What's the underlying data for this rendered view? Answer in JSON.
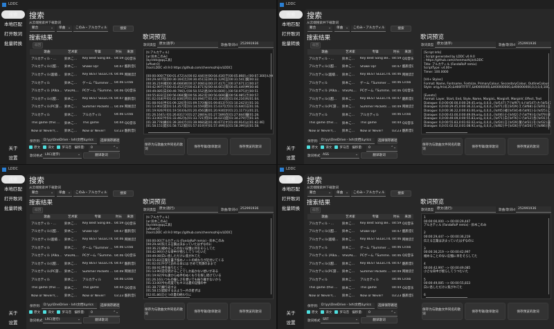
{
  "app_title": "LDDC",
  "sidebar": {
    "items": [
      "搜索",
      "本地匹配",
      "打开歌词",
      "批量转换"
    ],
    "bottom": [
      "关于",
      "设置"
    ]
  },
  "search": {
    "title": "搜索",
    "subtitle": "从云端搜索并下载歌词",
    "source": "聚合",
    "type": "单曲",
    "query": "このみ・アルカティル",
    "search_button": "搜索",
    "results_title": "搜索结果",
    "back_button": "返回",
    "columns": [
      "歌曲",
      "艺术家",
      "专辑",
      "时长",
      "来源"
    ],
    "rows": [
      [
        "アルカティル - ...",
        "鈴木こ...",
        "Key Best Song Be...",
        "04:59",
        "QQ音乐"
      ],
      [
        "アルカティル(《甜...",
        "鈴木こ...",
        "Shake Up!",
        "04:47",
        "酷狗音乐"
      ],
      [
        "アルカティル(超级...",
        "鈴木こ...",
        "Key BEST SELECTION",
        "04:46",
        "网易云音乐"
      ],
      [
        "アルカティル",
        "鈴木こ...",
        "ゲーム「Summer ...",
        "04:46",
        "Lrclib"
      ],
      [
        "アルカティル (Alka...",
        "VISUAL...",
        "PCゲーム「Summe...",
        "04:46",
        "QQ音乐"
      ],
      [
        "アルカティル(《甜...",
        "鈴木こ...",
        "Key BEST SELECTION",
        "04:47",
        "酷狗音乐"
      ],
      [
        "アルカティル(PC游...",
        "鈴木こ...",
        "Summer Pockets ...",
        "04:49",
        "网易云音乐"
      ],
      [
        "アルカティル",
        "鈴木こ...",
        "アルカティル",
        "04:46",
        "Lrclib"
      ],
      [
        "This game (this ...",
        "鈴木こ...",
        "This game",
        "04:44",
        "QQ音乐"
      ],
      [
        "Now or Never!(...",
        "鈴木こ...",
        "Now or Never!",
        "03:23",
        "酷狗音乐"
      ]
    ],
    "save_label": "保存到:",
    "save_path": "D:\\yy\\OneDrive - lxh\\文档\\Lyrics",
    "choose_path_button": "选择保存路径",
    "checks": [
      "原文",
      "译文",
      "罗马音"
    ],
    "offset_label": "偏移量:",
    "offset_value": "0",
    "format_label": "歌词格式:",
    "translate_button": "翻译歌词"
  },
  "preview": {
    "title": "歌词预览",
    "type_label": "歌词类型",
    "id_label": "歌曲/歌词id",
    "id_value": "252991936",
    "buttons": [
      "保存为与歌曲文件同名的歌词",
      "保存专辑/歌单歌词",
      "保存预览的歌词"
    ]
  },
  "windows": [
    {
      "format": "LRC(逐字)",
      "lyric_type": "原文(逐字)",
      "text": "[ti:アルカティル]\n[ar:鈴木このみ]\n[by:lddc@qq工具]\n[offset:0]\n[tool:LDDC v0.9.0 https://github.com/chenmozhijin/LDDC]\n\n[00:00.000]ア[00:01.472]ル[00:02.444]カ[00:04.416]テ[00:05.868]ィ[00:07.300]ル[00:08.\n[00:29.447]伝[00:30.164]え[00:30.451]る[00:31.129]言[00:31.541]葉[00:32.\n[00:36.219]褪[00:36.668]め[00:37.008]る[00:37.417]こ[00:37.671]と[00:37.\n[00:42.997]小[00:43.452]さ[00:43.871]な[00:44.661]背[00:45.449]中[00:46\n[00:49.085]白[00:49.796]い[00:50.552]息[00:50.669]し[00:50.975]た[00:51\n[00:55.833]言[00:56.068]葉[00:56.362]を[00:56.669]書[00:56.985]き[00:57.\n[01:02.018]や[01:02.836]が[01:03.094]て[01:03.356]訪[01:04.216]れ[01:04.\n[01:08.916]手[01:09.326]を[01:09.570]振[01:09.813]り[01:10.242]た[01:10.\n[01:13.902]逆[01:14.357]を[01:14.559]続[01:15.037]け[01:15.640]る[01:16.\n[01:19.926]今[01:19.503]も[01:20.456]遠[01:20.930]か[01:21.117]ら[01:21.\n[01:26.164]い[01:26.831]つ[01:27.288]も[01:27.589]の[01:27.844]優[01:28.\n[01:33.002]今[01:33.462]も[01:33.721]何[01:34.021]度[01:34.279]で[01:34.\n[01:38.778]繰[01:39.304]り[01:39.968]返[01:40.671]す[01:40.914]よ[01:42.46]\n[01:58.151]錯[01:58.712]綜[01:57.019]す[01:57.499]る[01:58.399]ま[01:58."
    },
    {
      "format": "ASS",
      "lyric_type": "原文(逐字)",
      "text": "[Script Info]\n; Script generated by LDDC v0.9.0\n; https://github.com/chenmozhijin/LDDC\nTitle: アルカティル (FandaRoP remix)\nScriptType: v4.00+\nTimer: 100.0000\n\n[V4+ Styles]\nFormat: Name, Fontname, Fontsize, PrimaryColour, SecondaryColour, OutlineColour\nStyle: orig,Arial,20,&H00FFFFFF,&H0000000,&H00000000,&H00000000,0,0,0,0,100,\n\n[Events]\nFormat: Layer, Start, End, Style, Name, MarginL, MarginR, MarginV, Effect, Text\nDialogue: 0,0:00:00.00,0:00:29.45,orig,,0,0,0,,{\\kf147}ア{\\kf97}ル{\\kf147}カ{\\kf147}\nDialogue: 0,0:00:29.45,0:00:36.22,orig,,0,0,0,,{\\kf71}伝{\\kf29}え{\\kf68}る{\\kf41}言\nDialogue: 0,0:00:36.22,0:00:43.00,orig,,0,0,0,,{\\kf45}褪{\\kf34}め{\\kf41}る{\\kf25}こ\nDialogue: 0,0:00:43.00,0:00:49.09,orig,,0,0,0,,{\\kf46}小{\\kf42}さ{\\kf79}な{\\kf79}背\nDialogue: 0,0:00:49.09,0:00:55.83,orig,,0,0,0,,{\\kf71}白{\\kf76}い{\\kf12}息{\\kf31}し\nDialogue: 0,0:00:55.83,0:01:02.02,orig,,0,0,0,,{\\kf24}言{\\kf29}葉{\\kf31}を{\\kf32}書\nDialogue: 0,0:01:02.02,0:01:08.92,orig,,0,0,0,,{\\kf82}や{\\kf26}が{\\kf26}て{\\kf86}訪"
    },
    {
      "format": "LRC(逐行)",
      "lyric_type": "原文(逐行)",
      "text": "[ti:アルカティル]\n[ar:鈴木このみ]\n[by:lddc@qq工具]\n[offset:0]\n[tool:LDDC v0.9.0 https://github.com/chenmozhijin/LDDC]\n\n[00:00.00]アルカティル (FandaRoP remix) - 鈴木このみ\n[00:29.44]伝える言葉は決まっていたはずなのに\n[00:36.21]褪めることのない記憶に目をそらしてた\n[00:42.99]小さな背中が揺らしてうつむいた\n[00:49.08]白い息しただけに焦がれてた\n[00:55.83]言葉を書き留めノートの終わりが近付いてくる\n[01:02.01]やがて訪れる日には せめて笑顔のままで\n[01:08.91]手を振りたくて…\n[01:13.90]逆を続けることでしか届かない想いがある\n[01:19.92]今も遠からぬ手のぬくもりを探し続けている\n[01:26.16]いつもの優しさを想いでも振り離せないから\n[01:33.00]今も何度でもキミは夏の記憶の中\n[01:38.77]繰り返すよ\n[01:58.15]錯綜するまよう一片の星ずは\n[02:01.86]ひとつの夏の終わりに"
    },
    {
      "format": "SRT",
      "lyric_type": "原文(逐行)",
      "text": "1\n00:00:00,000 --> 00:00:29,447\nアルカティル (FandaRoP remix) - 鈴木このみ\n\n2\n00:00:29,447 --> 00:00:36,219\n伝える言葉は決まっていたはずなのに\n\n3\n00:00:36,219 --> 00:00:42,997\n褪めることのない記憶に目をそらしてた\n\n4\n00:00:42,997 --> 00:00:49,085\n小さな背中が揺らしてうつむいた\n\n5\n00:00:49,085 --> 00:00:55,833\n白い息しただけに焦がれてた\n\n6"
    }
  ]
}
